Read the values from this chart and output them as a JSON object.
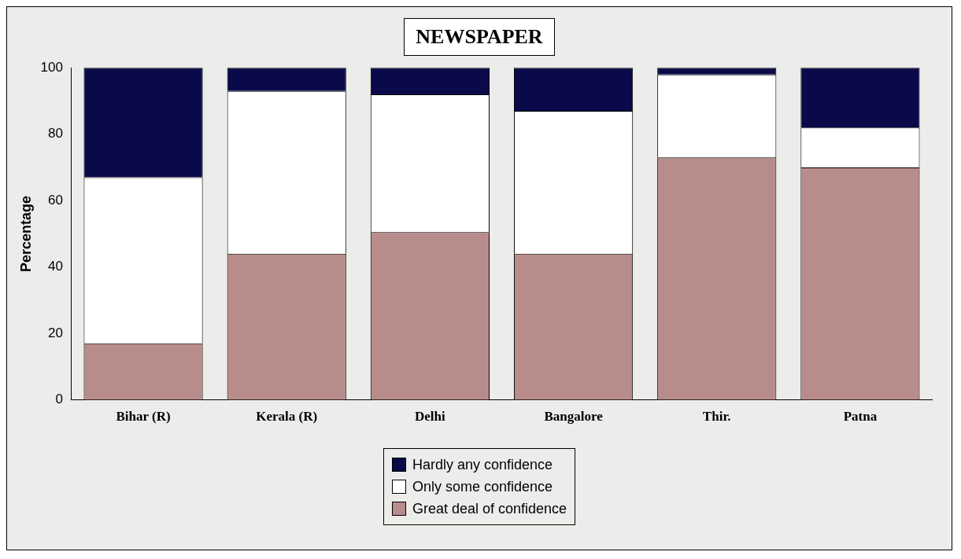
{
  "chart_data": {
    "type": "bar",
    "title": "NEWSPAPER",
    "ylabel": "Percentage",
    "categories": [
      "Bihar (R)",
      "Kerala (R)",
      "Delhi",
      "Bangalore",
      "Thir.",
      "Patna"
    ],
    "stacked": true,
    "ylim": [
      0,
      100
    ],
    "yticks": [
      0,
      20,
      40,
      60,
      80,
      100
    ],
    "grid": false,
    "legend": "bottom",
    "series": [
      {
        "name": "Great deal of confidence",
        "color": "#b98c8c",
        "values": [
          17,
          44,
          50.5,
          44,
          73,
          70
        ]
      },
      {
        "name": "Only some confidence",
        "color": "#ffffff",
        "values": [
          50,
          49,
          41.5,
          43,
          25,
          12
        ]
      },
      {
        "name": "Hardly any confidence",
        "color": "#0a0a4a",
        "values": [
          33,
          7,
          8,
          13,
          2,
          18
        ]
      }
    ]
  }
}
